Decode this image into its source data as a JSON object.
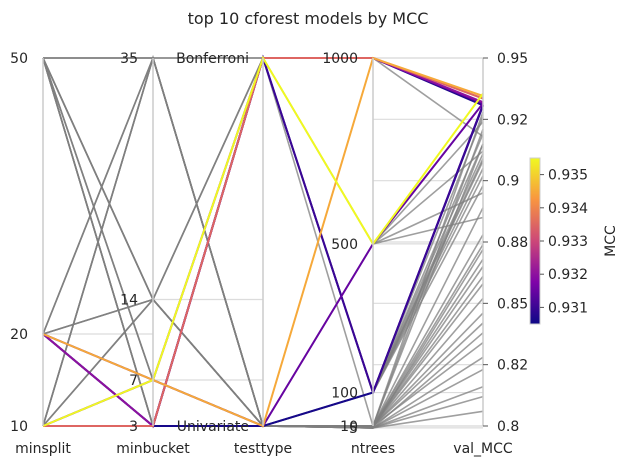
{
  "chart_data": {
    "type": "parallel-coordinates",
    "title": "top 10 cforest models by MCC",
    "axes": [
      {
        "name": "minsplit",
        "label": "minsplit",
        "kind": "numeric",
        "range": [
          10,
          50
        ],
        "tick_labels": [
          "50",
          "20",
          "10"
        ],
        "tick_values": [
          50,
          20,
          10
        ]
      },
      {
        "name": "minbucket",
        "label": "minbucket",
        "kind": "numeric",
        "range": [
          3,
          35
        ],
        "tick_labels": [
          "35",
          "14",
          "7",
          "3"
        ],
        "tick_values": [
          35,
          14,
          7,
          3
        ]
      },
      {
        "name": "testtype",
        "label": "testtype",
        "kind": "categorical",
        "categories": [
          "Univariate",
          "Bonferroni"
        ],
        "tick_labels": [
          "Bonferroni",
          "Univariate"
        ]
      },
      {
        "name": "ntrees",
        "label": "ntrees",
        "kind": "numeric",
        "range": [
          10,
          1000
        ],
        "tick_labels": [
          "1000",
          "500",
          "100",
          "10",
          "5"
        ],
        "tick_values": [
          1000,
          500,
          100,
          10,
          5
        ]
      },
      {
        "name": "val_MCC",
        "label": "val_MCC",
        "kind": "numeric",
        "range": [
          0.8,
          0.95
        ],
        "tick_labels": [
          "0.95",
          "0.92",
          "0.9",
          "0.88",
          "0.85",
          "0.82",
          "0.8"
        ],
        "tick_values": [
          0.95,
          0.925,
          0.9,
          0.875,
          0.85,
          0.825,
          0.8
        ]
      }
    ],
    "colorbar": {
      "label": "MCC",
      "range": [
        0.9305,
        0.9355
      ],
      "tick_labels": [
        "0.935",
        "0.934",
        "0.933",
        "0.932",
        "0.931"
      ],
      "tick_values": [
        0.935,
        0.934,
        0.933,
        0.932,
        0.931
      ],
      "colormap": "plasma"
    },
    "top_models": [
      {
        "minsplit": 10,
        "minbucket": 7,
        "testtype": "Bonferroni",
        "ntrees": 500,
        "val_MCC": 0.9355
      },
      {
        "minsplit": 20,
        "minbucket": 7,
        "testtype": "Univariate",
        "ntrees": 1000,
        "val_MCC": 0.9345
      },
      {
        "minsplit": 10,
        "minbucket": 3,
        "testtype": "Bonferroni",
        "ntrees": 1000,
        "val_MCC": 0.9335
      },
      {
        "minsplit": 20,
        "minbucket": 3,
        "testtype": "Bonferroni",
        "ntrees": 1000,
        "val_MCC": 0.932
      },
      {
        "minsplit": 10,
        "minbucket": 7,
        "testtype": "Bonferroni",
        "ntrees": 1000,
        "val_MCC": 0.9315
      },
      {
        "minsplit": 20,
        "minbucket": 7,
        "testtype": "Univariate",
        "ntrees": 500,
        "val_MCC": 0.9315
      },
      {
        "minsplit": 10,
        "minbucket": 3,
        "testtype": "Bonferroni",
        "ntrees": 100,
        "val_MCC": 0.931
      },
      {
        "minsplit": 20,
        "minbucket": 3,
        "testtype": "Bonferroni",
        "ntrees": 100,
        "val_MCC": 0.9308
      },
      {
        "minsplit": 10,
        "minbucket": 3,
        "testtype": "Bonferroni",
        "ntrees": 1000,
        "val_MCC": 0.9307
      },
      {
        "minsplit": 20,
        "minbucket": 3,
        "testtype": "Univariate",
        "ntrees": 100,
        "val_MCC": 0.9306
      }
    ],
    "other_models": [
      {
        "minsplit": 50,
        "minbucket": 3,
        "testtype": "Univariate",
        "ntrees": 10,
        "val_MCC": 0.928
      },
      {
        "minsplit": 50,
        "minbucket": 14,
        "testtype": "Bonferroni",
        "ntrees": 10,
        "val_MCC": 0.915
      },
      {
        "minsplit": 50,
        "minbucket": 7,
        "testtype": "Univariate",
        "ntrees": 100,
        "val_MCC": 0.905
      },
      {
        "minsplit": 50,
        "minbucket": 3,
        "testtype": "Univariate",
        "ntrees": 5,
        "val_MCC": 0.872
      },
      {
        "minsplit": 50,
        "minbucket": 35,
        "testtype": "Bonferroni",
        "ntrees": 500,
        "val_MCC": 0.895
      },
      {
        "minsplit": 20,
        "minbucket": 35,
        "testtype": "Univariate",
        "ntrees": 10,
        "val_MCC": 0.865
      },
      {
        "minsplit": 20,
        "minbucket": 14,
        "testtype": "Bonferroni",
        "ntrees": 500,
        "val_MCC": 0.885
      },
      {
        "minsplit": 10,
        "minbucket": 35,
        "testtype": "Univariate",
        "ntrees": 10,
        "val_MCC": 0.852
      },
      {
        "minsplit": 10,
        "minbucket": 14,
        "testtype": "Univariate",
        "ntrees": 5,
        "val_MCC": 0.823
      },
      {
        "minsplit": 10,
        "minbucket": 35,
        "testtype": "Bonferroni",
        "ntrees": 1000,
        "val_MCC": 0.918
      },
      {
        "minsplit": 20,
        "minbucket": 7,
        "testtype": "Univariate",
        "ntrees": 10,
        "val_MCC": 0.842
      },
      {
        "minsplit": 10,
        "minbucket": 14,
        "testtype": "Univariate",
        "ntrees": 10,
        "val_MCC": 0.834
      },
      {
        "minsplit": 50,
        "minbucket": 14,
        "testtype": "Univariate",
        "ntrees": 5,
        "val_MCC": 0.812
      },
      {
        "minsplit": 50,
        "minbucket": 3,
        "testtype": "Bonferroni",
        "ntrees": 100,
        "val_MCC": 0.908
      },
      {
        "minsplit": 20,
        "minbucket": 35,
        "testtype": "Univariate",
        "ntrees": 100,
        "val_MCC": 0.898
      },
      {
        "minsplit": 10,
        "minbucket": 35,
        "testtype": "Univariate",
        "ntrees": 500,
        "val_MCC": 0.912
      },
      {
        "minsplit": 50,
        "minbucket": 7,
        "testtype": "Univariate",
        "ntrees": 10,
        "val_MCC": 0.878
      },
      {
        "minsplit": 20,
        "minbucket": 14,
        "testtype": "Univariate",
        "ntrees": 10,
        "val_MCC": 0.858
      },
      {
        "minsplit": 50,
        "minbucket": 35,
        "testtype": "Univariate",
        "ntrees": 10,
        "val_MCC": 0.846
      },
      {
        "minsplit": 10,
        "minbucket": 7,
        "testtype": "Univariate",
        "ntrees": 5,
        "val_MCC": 0.806
      },
      {
        "minsplit": 50,
        "minbucket": 14,
        "testtype": "Univariate",
        "ntrees": 100,
        "val_MCC": 0.902
      },
      {
        "minsplit": 20,
        "minbucket": 3,
        "testtype": "Univariate",
        "ntrees": 10,
        "val_MCC": 0.889
      },
      {
        "minsplit": 50,
        "minbucket": 3,
        "testtype": "Univariate",
        "ntrees": 10,
        "val_MCC": 0.921
      },
      {
        "minsplit": 10,
        "minbucket": 14,
        "testtype": "Bonferroni",
        "ntrees": 500,
        "val_MCC": 0.924
      },
      {
        "minsplit": 20,
        "minbucket": 35,
        "testtype": "Univariate",
        "ntrees": 5,
        "val_MCC": 0.828
      },
      {
        "minsplit": 50,
        "minbucket": 7,
        "testtype": "Univariate",
        "ntrees": 5,
        "val_MCC": 0.838
      },
      {
        "minsplit": 10,
        "minbucket": 3,
        "testtype": "Univariate",
        "ntrees": 10,
        "val_MCC": 0.868
      },
      {
        "minsplit": 20,
        "minbucket": 14,
        "testtype": "Univariate",
        "ntrees": 100,
        "val_MCC": 0.915
      },
      {
        "minsplit": 50,
        "minbucket": 35,
        "testtype": "Univariate",
        "ntrees": 100,
        "val_MCC": 0.909
      },
      {
        "minsplit": 10,
        "minbucket": 7,
        "testtype": "Univariate",
        "ntrees": 10,
        "val_MCC": 0.874
      },
      {
        "minsplit": 20,
        "minbucket": 3,
        "testtype": "Univariate",
        "ntrees": 5,
        "val_MCC": 0.816
      },
      {
        "minsplit": 50,
        "minbucket": 14,
        "testtype": "Univariate",
        "ntrees": 10,
        "val_MCC": 0.861
      },
      {
        "minsplit": 10,
        "minbucket": 35,
        "testtype": "Univariate",
        "ntrees": 100,
        "val_MCC": 0.919
      },
      {
        "minsplit": 20,
        "minbucket": 7,
        "testtype": "Univariate",
        "ntrees": 100,
        "val_MCC": 0.911
      },
      {
        "minsplit": 50,
        "minbucket": 3,
        "testtype": "Univariate",
        "ntrees": 100,
        "val_MCC": 0.926
      }
    ]
  }
}
